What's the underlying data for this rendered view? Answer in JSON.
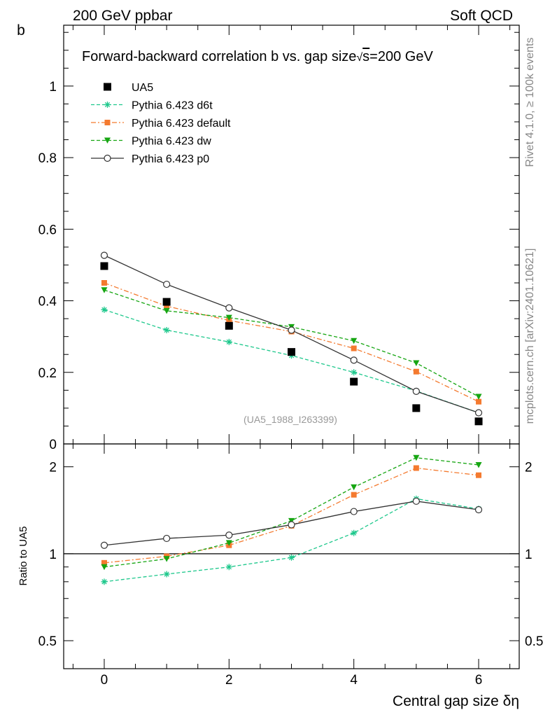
{
  "header": {
    "left": "200 GeV ppbar",
    "right": "Soft QCD"
  },
  "side_text": {
    "upper": "Rivet 4.1.0, ≥ 100k events",
    "lower": "mcplots.cern.ch [arXiv:2401.10621]"
  },
  "chart_data": {
    "type": "line",
    "title": "Forward-backward correlation b vs. gap size",
    "title_suffix_sqrt": "s",
    "title_suffix_rest": "=200 GeV",
    "watermark": "(UA5_1988_I263399)",
    "xlabel": "Central gap size δη",
    "ylabel": "b",
    "ratio_ylabel": "Ratio to UA5",
    "x": [
      0,
      1,
      2,
      3,
      4,
      5,
      6
    ],
    "xlim": [
      -0.65,
      6.65
    ],
    "ylim": [
      0,
      1.17
    ],
    "ratio_ylim": [
      0.4,
      2.4
    ],
    "xticks": [
      "0",
      "2",
      "4",
      "6"
    ],
    "yticks": [
      "0",
      "0.2",
      "0.4",
      "0.6",
      "0.8",
      "1"
    ],
    "ratio_yticks": [
      "0.5",
      "1",
      "2"
    ],
    "legend_position": "top-left",
    "series": [
      {
        "name": "UA5",
        "color": "#000000",
        "marker": "square",
        "line": "none",
        "values": [
          0.497,
          0.397,
          0.33,
          0.257,
          0.174,
          0.1,
          0.063
        ],
        "ratio": [
          1,
          1,
          1,
          1,
          1,
          1,
          1
        ]
      },
      {
        "name": "Pythia 6.423 d6t",
        "color": "#1ec88c",
        "marker": "star",
        "line": "dashed",
        "values": [
          0.375,
          0.318,
          0.285,
          0.247,
          0.2,
          0.148,
          0.087
        ],
        "ratio": [
          0.8,
          0.85,
          0.9,
          0.97,
          1.18,
          1.55,
          1.43
        ]
      },
      {
        "name": "Pythia 6.423 default",
        "color": "#f47a2f",
        "marker": "square",
        "line": "dashdot",
        "values": [
          0.45,
          0.385,
          0.345,
          0.314,
          0.267,
          0.202,
          0.118
        ],
        "ratio": [
          0.93,
          0.98,
          1.07,
          1.25,
          1.6,
          1.98,
          1.87
        ]
      },
      {
        "name": "Pythia 6.423 dw",
        "color": "#16a612",
        "marker": "triangle-down",
        "line": "dashed",
        "values": [
          0.43,
          0.372,
          0.353,
          0.327,
          0.288,
          0.226,
          0.132
        ],
        "ratio": [
          0.9,
          0.96,
          1.09,
          1.3,
          1.7,
          2.15,
          2.03
        ]
      },
      {
        "name": "Pythia 6.423 p0",
        "color": "#333333",
        "marker": "circle-open",
        "line": "solid",
        "values": [
          0.527,
          0.446,
          0.38,
          0.318,
          0.234,
          0.147,
          0.087
        ],
        "ratio": [
          1.07,
          1.13,
          1.16,
          1.26,
          1.4,
          1.52,
          1.42
        ]
      }
    ]
  }
}
